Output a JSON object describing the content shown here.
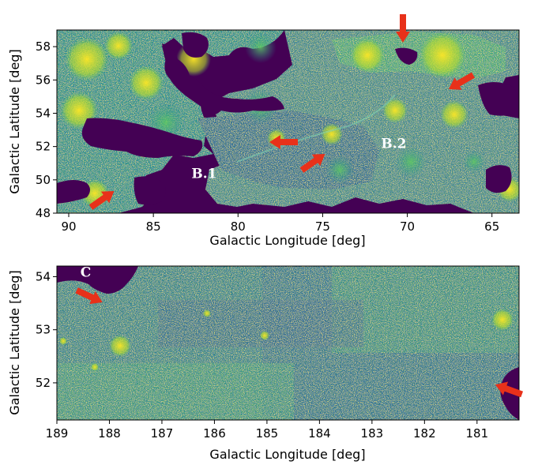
{
  "colors": {
    "background_purple": "#440154",
    "dark_blue": "#3b528b",
    "teal": "#21918c",
    "green": "#5ec962",
    "yellow": "#fde725",
    "arrow_red": "#e8311a"
  },
  "panels": [
    {
      "id": "top",
      "xlabel": "Galactic Longitude [deg]",
      "ylabel": "Galactic Latitude [deg]",
      "xlim": [
        90.7,
        63.4
      ],
      "ylim": [
        48,
        59
      ],
      "x_ticks": [
        90,
        85,
        80,
        75,
        70,
        65
      ],
      "y_ticks": [
        48,
        50,
        52,
        54,
        56,
        58
      ],
      "region_labels": [
        {
          "text": "B.1",
          "lon": 82.0,
          "lat": 50.1
        },
        {
          "text": "B.2",
          "lon": 70.8,
          "lat": 51.9
        }
      ],
      "arrows_icon": "red-arrow-icon"
    },
    {
      "id": "bottom",
      "xlabel": "Galactic Longitude [deg]",
      "ylabel": "Galactic Latitude [deg]",
      "xlim": [
        189.0,
        180.2
      ],
      "ylim": [
        51.3,
        54.2
      ],
      "x_ticks": [
        189,
        188,
        187,
        186,
        185,
        184,
        183,
        182,
        181
      ],
      "y_ticks": [
        52,
        53,
        54
      ],
      "region_labels": [
        {
          "text": "C",
          "lon": 188.45,
          "lat": 54.0
        }
      ],
      "arrows_icon": "red-arrow-icon"
    }
  ]
}
